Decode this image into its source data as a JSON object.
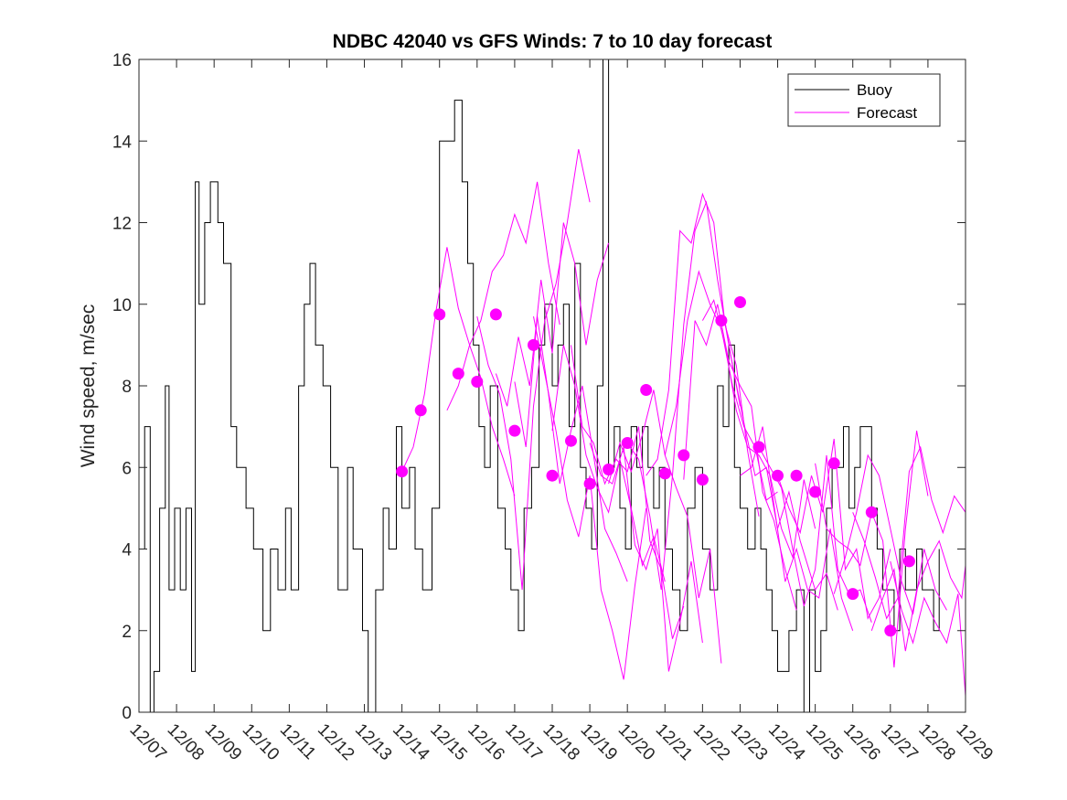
{
  "chart_data": {
    "type": "line",
    "title": "NDBC 42040 vs GFS Winds: 7 to 10 day forecast",
    "xlabel": "",
    "ylabel": "Wind speed, m/sec",
    "xlim": [
      0,
      22
    ],
    "ylim": [
      0,
      16
    ],
    "yticks": [
      0,
      2,
      4,
      6,
      8,
      10,
      12,
      14,
      16
    ],
    "xticks": [
      0,
      1,
      2,
      3,
      4,
      5,
      6,
      7,
      8,
      9,
      10,
      11,
      12,
      13,
      14,
      15,
      16,
      17,
      18,
      19,
      20,
      21,
      22
    ],
    "xtick_labels": [
      "12/07",
      "12/08",
      "12/09",
      "12/10",
      "12/11",
      "12/12",
      "12/13",
      "12/14",
      "12/15",
      "12/16",
      "12/17",
      "12/18",
      "12/19",
      "12/20",
      "12/21",
      "12/22",
      "12/23",
      "12/24",
      "12/25",
      "12/26",
      "12/27",
      "12/28",
      "12/29"
    ],
    "legend": {
      "position": "top-right",
      "entries": [
        "Buoy",
        "Forecast"
      ]
    },
    "colors": {
      "buoy": "#000000",
      "forecast": "#ff00ff",
      "axis": "#262626"
    },
    "series": [
      {
        "name": "Buoy",
        "x": [
          0,
          0.15,
          0.3,
          0.4,
          0.55,
          0.7,
          0.8,
          0.95,
          1.1,
          1.25,
          1.4,
          1.5,
          1.6,
          1.75,
          1.9,
          2.1,
          2.25,
          2.45,
          2.6,
          2.85,
          3.05,
          3.3,
          3.5,
          3.7,
          3.9,
          4.05,
          4.25,
          4.4,
          4.55,
          4.7,
          4.9,
          5.1,
          5.3,
          5.55,
          5.7,
          5.95,
          6.1,
          6.3,
          6.5,
          6.65,
          6.85,
          7.0,
          7.2,
          7.35,
          7.55,
          7.8,
          8.0,
          8.2,
          8.4,
          8.6,
          8.75,
          8.9,
          9.05,
          9.2,
          9.35,
          9.55,
          9.75,
          9.9,
          10.1,
          10.25,
          10.45,
          10.65,
          10.8,
          11.0,
          11.15,
          11.3,
          11.45,
          11.6,
          11.75,
          11.9,
          12.05,
          12.2,
          12.35,
          12.5,
          12.65,
          12.8,
          12.95,
          13.1,
          13.25,
          13.4,
          13.55,
          13.7,
          13.85,
          14.0,
          14.2,
          14.4,
          14.6,
          14.8,
          15.0,
          15.2,
          15.4,
          15.55,
          15.7,
          15.85,
          16.0,
          16.2,
          16.4,
          16.55,
          16.7,
          16.85,
          17.0,
          17.15,
          17.3,
          17.5,
          17.7,
          17.85,
          18.0,
          18.15,
          18.3,
          18.45,
          18.6,
          18.75,
          18.9,
          19.05,
          19.2,
          19.35,
          19.5,
          19.65,
          19.8,
          19.95,
          20.1,
          20.25,
          20.4,
          20.55,
          20.7,
          20.85,
          21.0,
          21.15,
          21.3
        ],
        "values": [
          4,
          7,
          0,
          1,
          5,
          8,
          3,
          5,
          3,
          5,
          1,
          13,
          10,
          12,
          13,
          12,
          11,
          7,
          6,
          5,
          4,
          2,
          4,
          3,
          5,
          3,
          8,
          10,
          11,
          9,
          8,
          6,
          3,
          6,
          4,
          2,
          0,
          3,
          5,
          4,
          7,
          5,
          6,
          4,
          3,
          5,
          14,
          14,
          15,
          13,
          11,
          9,
          7,
          6,
          8,
          5,
          4,
          3,
          2,
          5,
          6,
          9,
          10,
          8,
          9,
          10,
          7,
          11,
          6,
          5,
          4,
          8,
          16,
          6,
          7,
          5,
          4,
          7,
          6,
          7,
          6,
          5,
          6,
          4,
          3,
          2,
          5,
          6,
          4,
          3,
          8,
          7,
          9,
          6,
          5,
          4,
          5,
          4,
          3,
          2,
          1,
          1,
          2,
          3,
          0,
          3,
          1,
          2,
          5,
          6,
          6,
          7,
          5,
          6,
          7,
          7,
          5,
          4,
          3,
          3,
          2,
          4,
          3,
          3,
          4,
          3,
          3,
          2,
          4
        ]
      }
    ],
    "forecast_traces": [
      {
        "name": "Forecast",
        "x": [
          7.0,
          7.3,
          7.6,
          7.9,
          8.2,
          8.5,
          8.8,
          9.1,
          9.4,
          9.7,
          10.0
        ],
        "values": [
          5.9,
          6.5,
          7.8,
          9.8,
          11.4,
          9.9,
          9.0,
          8.2,
          7.0,
          6.2,
          5.3
        ]
      },
      {
        "name": "Forecast",
        "x": [
          8.2,
          8.5,
          8.8,
          9.1,
          9.4,
          9.7,
          10.0,
          10.3,
          10.6,
          10.9,
          11.2
        ],
        "values": [
          7.4,
          8.0,
          9.0,
          9.6,
          10.8,
          11.2,
          12.2,
          11.5,
          13.0,
          11.0,
          9.5
        ]
      },
      {
        "name": "Forecast",
        "x": [
          9.0,
          9.3,
          9.6,
          9.9,
          10.2,
          10.5,
          10.8,
          11.1,
          11.4,
          11.7,
          12.0
        ],
        "values": [
          9.7,
          8.5,
          7.8,
          6.2,
          3.0,
          7.5,
          9.6,
          10.5,
          12.0,
          13.8,
          12.5
        ]
      },
      {
        "name": "Forecast",
        "x": [
          9.5,
          9.8,
          10.1,
          10.4,
          10.7,
          11.0,
          11.3,
          11.6,
          11.9,
          12.2,
          12.5
        ],
        "values": [
          8.3,
          7.5,
          9.2,
          8.0,
          10.6,
          8.8,
          12.0,
          11.0,
          9.0,
          10.6,
          11.5
        ]
      },
      {
        "name": "Forecast",
        "x": [
          10.0,
          10.3,
          10.6,
          10.9,
          11.2,
          11.5,
          11.8,
          12.1,
          12.4,
          12.7,
          13.0
        ],
        "values": [
          8.1,
          6.5,
          9.7,
          7.8,
          5.6,
          6.9,
          8.0,
          6.3,
          4.5,
          3.9,
          3.2
        ]
      },
      {
        "name": "Forecast",
        "x": [
          10.5,
          10.8,
          11.1,
          11.4,
          11.7,
          12.0,
          12.3,
          12.6,
          12.9,
          13.2,
          13.5
        ],
        "values": [
          9.7,
          8.3,
          6.9,
          5.2,
          4.3,
          5.8,
          3.0,
          2.0,
          0.8,
          3.1,
          5.0
        ]
      },
      {
        "name": "Forecast",
        "x": [
          11.0,
          11.3,
          11.6,
          11.9,
          12.2,
          12.5,
          12.8,
          13.1,
          13.4,
          13.7,
          14.0
        ],
        "values": [
          6.9,
          9.0,
          8.0,
          6.3,
          5.5,
          4.9,
          6.2,
          5.0,
          3.6,
          4.3,
          3.2
        ]
      },
      {
        "name": "Forecast",
        "x": [
          11.5,
          11.8,
          12.1,
          12.4,
          12.7,
          13.0,
          13.3,
          13.6,
          13.9,
          14.2,
          14.5
        ],
        "values": [
          9.0,
          7.0,
          6.6,
          5.6,
          6.2,
          5.9,
          7.0,
          4.2,
          3.5,
          1.8,
          2.6
        ]
      },
      {
        "name": "Forecast",
        "x": [
          12.0,
          12.3,
          12.6,
          12.9,
          13.2,
          13.5,
          13.8,
          14.1,
          14.4,
          14.7,
          15.0
        ],
        "values": [
          6.6,
          5.8,
          5.6,
          6.5,
          4.1,
          3.5,
          4.5,
          1.0,
          2.2,
          3.7,
          1.7
        ]
      },
      {
        "name": "Forecast",
        "x": [
          12.5,
          12.8,
          13.1,
          13.4,
          13.7,
          14.0,
          14.3,
          14.6,
          14.9,
          15.2,
          15.5
        ],
        "values": [
          5.6,
          6.6,
          5.9,
          6.8,
          7.9,
          6.3,
          5.5,
          4.8,
          2.8,
          4.0,
          1.2
        ]
      },
      {
        "name": "Forecast",
        "x": [
          13.0,
          13.3,
          13.6,
          13.9,
          14.2,
          14.5,
          14.8,
          15.1,
          15.4,
          15.7,
          16.0
        ],
        "values": [
          6.6,
          6.2,
          4.8,
          3.0,
          5.8,
          9.5,
          11.8,
          12.5,
          10.6,
          9.0,
          7.5
        ]
      },
      {
        "name": "Forecast",
        "x": [
          13.5,
          13.8,
          14.1,
          14.4,
          14.7,
          15.0,
          15.3,
          15.6,
          15.9,
          16.2,
          16.5
        ],
        "values": [
          5.8,
          6.2,
          7.9,
          11.8,
          11.5,
          12.7,
          12.0,
          9.5,
          8.5,
          6.4,
          4.8
        ]
      },
      {
        "name": "Forecast",
        "x": [
          14.0,
          14.3,
          14.6,
          14.9,
          15.2,
          15.5,
          15.8,
          16.1,
          16.4,
          16.7,
          17.0
        ],
        "values": [
          6.3,
          7.5,
          9.6,
          10.8,
          10.0,
          9.4,
          8.0,
          7.0,
          6.5,
          5.2,
          5.4
        ]
      },
      {
        "name": "Forecast",
        "x": [
          14.5,
          14.8,
          15.1,
          15.4,
          15.7,
          16.0,
          16.3,
          16.6,
          16.9,
          17.2,
          17.5
        ],
        "values": [
          5.7,
          9.6,
          9.0,
          10.0,
          8.6,
          8.0,
          7.5,
          5.4,
          4.7,
          3.5,
          2.5
        ]
      },
      {
        "name": "Forecast",
        "x": [
          15.0,
          15.3,
          15.6,
          15.9,
          16.2,
          16.5,
          16.8,
          17.1,
          17.4,
          17.7,
          18.0
        ],
        "values": [
          9.6,
          10.1,
          9.0,
          7.4,
          6.5,
          6.3,
          5.8,
          4.5,
          3.8,
          5.7,
          4.5
        ]
      },
      {
        "name": "Forecast",
        "x": [
          15.5,
          15.8,
          16.1,
          16.4,
          16.7,
          17.0,
          17.3,
          17.6,
          18.0,
          18.3,
          18.6
        ],
        "values": [
          10.1,
          8.5,
          7.1,
          5.8,
          6.0,
          4.5,
          5.4,
          4.2,
          3.0,
          3.4,
          2.5
        ]
      },
      {
        "name": "Forecast",
        "x": [
          16.0,
          16.3,
          16.6,
          16.9,
          17.2,
          17.5,
          17.8,
          18.1,
          18.4,
          18.7,
          19.0
        ],
        "values": [
          5.8,
          6.0,
          7.0,
          5.1,
          3.2,
          4.0,
          3.0,
          2.8,
          4.5,
          2.8,
          2.0
        ]
      },
      {
        "name": "Forecast",
        "x": [
          16.5,
          16.8,
          17.1,
          17.4,
          17.7,
          18.0,
          18.3,
          18.6,
          18.9,
          19.2,
          19.5
        ],
        "values": [
          6.5,
          6.0,
          5.5,
          4.0,
          2.6,
          3.5,
          6.3,
          3.5,
          2.9,
          3.0,
          2.2
        ]
      },
      {
        "name": "Forecast",
        "x": [
          17.0,
          17.3,
          17.6,
          17.9,
          18.2,
          18.5,
          18.8,
          19.1,
          19.4,
          19.7,
          20.0
        ],
        "values": [
          5.8,
          5.0,
          4.4,
          5.8,
          4.9,
          6.7,
          3.5,
          4.0,
          2.3,
          2.8,
          4.0
        ]
      },
      {
        "name": "Forecast",
        "x": [
          18.0,
          18.3,
          18.6,
          18.9,
          19.2,
          19.5,
          19.8,
          20.1,
          20.4,
          20.7,
          21.0
        ],
        "values": [
          6.1,
          4.5,
          4.2,
          4.0,
          3.6,
          4.9,
          4.2,
          1.1,
          4.5,
          6.9,
          5.3
        ]
      },
      {
        "name": "Forecast",
        "x": [
          18.5,
          18.8,
          19.1,
          19.4,
          19.7,
          20.0,
          20.3,
          20.6,
          20.9,
          21.2,
          21.5
        ],
        "values": [
          2.9,
          3.8,
          4.9,
          6.3,
          5.8,
          4.5,
          3.2,
          2.4,
          4.0,
          3.0,
          2.5
        ]
      },
      {
        "name": "Forecast",
        "x": [
          19.0,
          19.3,
          19.6,
          19.9,
          20.2,
          20.5,
          20.8,
          21.1,
          21.4,
          21.7,
          22.0
        ],
        "values": [
          4.9,
          4.2,
          3.3,
          2.3,
          2.8,
          5.9,
          6.5,
          5.2,
          4.4,
          5.3,
          4.9
        ]
      },
      {
        "name": "Forecast",
        "x": [
          19.5,
          19.8,
          20.1,
          20.4,
          20.7,
          21.0,
          21.3,
          21.6,
          21.9,
          22.0
        ],
        "values": [
          2.0,
          2.8,
          3.5,
          1.5,
          3.0,
          3.7,
          4.2,
          3.3,
          2.8,
          3.6
        ]
      },
      {
        "name": "Forecast",
        "x": [
          20.0,
          20.3,
          20.6,
          20.9,
          21.2,
          21.5,
          21.8,
          22.0
        ],
        "values": [
          3.7,
          2.5,
          1.7,
          2.8,
          2.2,
          1.7,
          2.9,
          0.4
        ]
      }
    ],
    "forecast_points": {
      "name": "Forecast",
      "x": [
        7.0,
        7.5,
        8.0,
        8.5,
        9.0,
        9.5,
        10.0,
        10.5,
        11.0,
        11.5,
        12.0,
        12.5,
        13.0,
        13.5,
        14.0,
        14.5,
        15.0,
        15.5,
        16.0,
        16.5,
        17.0,
        17.5,
        18.0,
        18.5,
        19.0,
        19.5,
        20.0,
        20.5
      ],
      "values": [
        5.9,
        7.4,
        9.75,
        8.3,
        8.1,
        9.75,
        6.9,
        9.0,
        5.8,
        6.65,
        5.6,
        5.95,
        6.6,
        7.9,
        5.85,
        6.3,
        5.7,
        9.6,
        10.05,
        6.5,
        5.8,
        5.8,
        5.4,
        6.1,
        2.9,
        4.9,
        2.0,
        3.7
      ]
    }
  }
}
